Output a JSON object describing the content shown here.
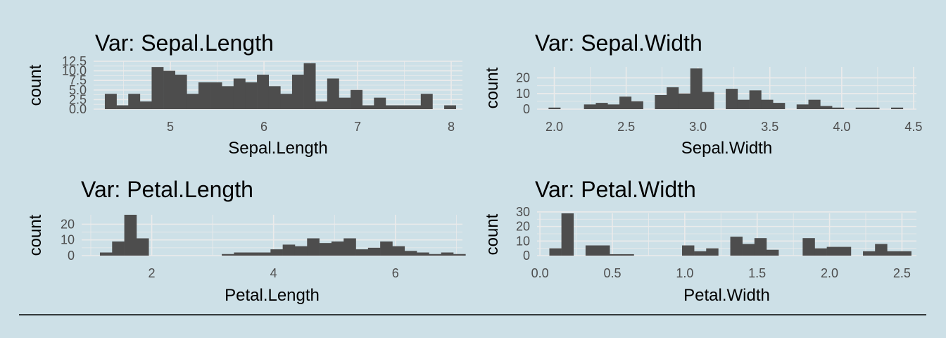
{
  "chart_data": [
    {
      "type": "bar",
      "title": "Var: Sepal.Length",
      "xlabel": "Sepal.Length",
      "ylabel": "count",
      "xlim": [
        4.18,
        8.12
      ],
      "ylim": [
        0,
        12.5
      ],
      "xticks": [
        5,
        6,
        7,
        8
      ],
      "xtick_labels": [
        "5",
        "6",
        "7",
        "8"
      ],
      "yticks": [
        0,
        2.5,
        5,
        7.5,
        10,
        12.5
      ],
      "ytick_labels": [
        "0.0",
        "2.5",
        "5.0",
        "7.5",
        "10.0",
        "12.5"
      ],
      "bins": {
        "start": 4.3,
        "width": 0.125
      },
      "values": [
        4,
        1,
        4,
        2,
        11,
        10,
        9,
        4,
        7,
        7,
        6,
        8,
        7,
        9,
        6,
        4,
        9,
        12,
        2,
        8,
        3,
        5,
        1,
        3,
        1,
        1,
        1,
        4,
        0,
        1
      ]
    },
    {
      "type": "bar",
      "title": "Var: Sepal.Width",
      "xlabel": "Sepal.Width",
      "ylabel": "count",
      "xlim": [
        1.88,
        4.52
      ],
      "ylim": [
        0,
        27
      ],
      "xticks": [
        2.0,
        2.5,
        3.0,
        3.5,
        4.0,
        4.5
      ],
      "xtick_labels": [
        "2.0",
        "2.5",
        "3.0",
        "3.5",
        "4.0",
        "4.5"
      ],
      "yticks": [
        0,
        10,
        20
      ],
      "ytick_labels": [
        "0",
        "10",
        "20"
      ],
      "bins": {
        "start": 1.96,
        "width": 0.0822
      },
      "values": [
        1,
        0,
        0,
        3,
        4,
        3,
        8,
        5,
        0,
        9,
        14,
        10,
        26,
        11,
        0,
        13,
        6,
        12,
        6,
        4,
        0,
        3,
        6,
        2,
        1,
        0,
        1,
        1,
        0,
        1
      ]
    },
    {
      "type": "bar",
      "title": "Var: Petal.Length",
      "xlabel": "Petal.Length",
      "ylabel": "count",
      "xlim": [
        0.85,
        7.1
      ],
      "ylim": [
        0,
        26
      ],
      "xticks": [
        2,
        4,
        6
      ],
      "xtick_labels": [
        "2",
        "4",
        "6"
      ],
      "yticks": [
        0,
        10,
        20
      ],
      "ytick_labels": [
        "0",
        "10",
        "20"
      ],
      "bins": {
        "start": 1.15,
        "width": 0.2
      },
      "values": [
        2,
        9,
        26,
        11,
        0,
        0,
        0,
        0,
        0,
        0,
        1,
        2,
        2,
        2,
        4,
        7,
        6,
        11,
        8,
        9,
        11,
        4,
        5,
        9,
        6,
        3,
        2,
        1,
        2,
        1
      ]
    },
    {
      "type": "bar",
      "title": "Var: Petal.Width",
      "xlabel": "Petal.Width",
      "ylabel": "count",
      "xlim": [
        -0.02,
        2.6
      ],
      "ylim": [
        0,
        29
      ],
      "xticks": [
        0.0,
        0.5,
        1.0,
        1.5,
        2.0,
        2.5
      ],
      "xtick_labels": [
        "0.0",
        "0.5",
        "1.0",
        "1.5",
        "2.0",
        "2.5"
      ],
      "yticks": [
        0,
        10,
        20,
        30
      ],
      "ytick_labels": [
        "0",
        "10",
        "20",
        "30"
      ],
      "bins": {
        "start": 0.065,
        "width": 0.0833
      },
      "values": [
        5,
        29,
        0,
        7,
        7,
        1,
        1,
        0,
        0,
        0,
        0,
        7,
        3,
        5,
        0,
        13,
        8,
        12,
        4,
        0,
        0,
        12,
        5,
        6,
        6,
        0,
        3,
        8,
        3,
        3
      ]
    }
  ]
}
